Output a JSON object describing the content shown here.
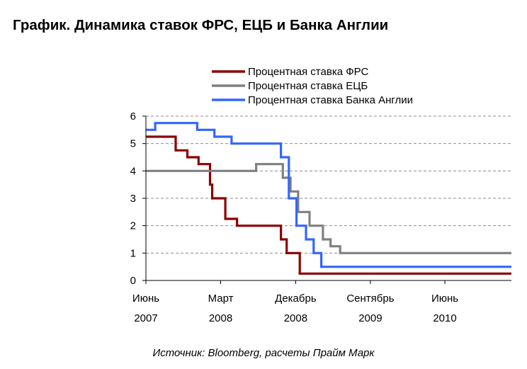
{
  "title": "График. Динамика ставок ФРС, ЕЦБ и Банка Англии",
  "source": "Источник: Bloomberg, расчеты Прайм Марк",
  "chart_data": {
    "type": "line",
    "step": true,
    "title": "График. Динамика ставок ФРС, ЕЦБ и Банка Англии",
    "xlabel": "",
    "ylabel": "",
    "xlim": [
      "2007-06-01",
      "2011-01-31"
    ],
    "ylim": [
      0,
      6
    ],
    "y_ticks": [
      0,
      1,
      2,
      3,
      4,
      5,
      6
    ],
    "grid": "horizontal-dashed",
    "legend_position": "top-center",
    "x_tick_labels": [
      {
        "date": "2007-06-01",
        "month": "Июнь",
        "year": "2007"
      },
      {
        "date": "2008-03-01",
        "month": "Март",
        "year": "2008"
      },
      {
        "date": "2008-12-01",
        "month": "Декабрь",
        "year": "2008"
      },
      {
        "date": "2009-09-01",
        "month": "Сентябрь",
        "year": "2009"
      },
      {
        "date": "2010-06-01",
        "month": "Июнь",
        "year": "2010"
      }
    ],
    "series": [
      {
        "name": "Процентная ставка ФРС",
        "color": "#8b0000",
        "points": [
          [
            "2007-06-01",
            5.25
          ],
          [
            "2007-09-18",
            4.75
          ],
          [
            "2007-10-31",
            4.5
          ],
          [
            "2007-12-11",
            4.25
          ],
          [
            "2008-01-22",
            3.5
          ],
          [
            "2008-01-30",
            3.0
          ],
          [
            "2008-03-18",
            2.25
          ],
          [
            "2008-04-30",
            2.0
          ],
          [
            "2008-10-08",
            1.5
          ],
          [
            "2008-10-29",
            1.0
          ],
          [
            "2008-12-16",
            0.25
          ],
          [
            "2011-01-31",
            0.25
          ]
        ]
      },
      {
        "name": "Процентная ставка ЕЦБ",
        "color": "#808080",
        "points": [
          [
            "2007-06-01",
            4.0
          ],
          [
            "2008-07-09",
            4.25
          ],
          [
            "2008-10-15",
            3.75
          ],
          [
            "2008-11-12",
            3.25
          ],
          [
            "2008-12-10",
            2.5
          ],
          [
            "2009-01-21",
            2.0
          ],
          [
            "2009-03-11",
            1.5
          ],
          [
            "2009-04-08",
            1.25
          ],
          [
            "2009-05-13",
            1.0
          ],
          [
            "2011-01-31",
            1.0
          ]
        ]
      },
      {
        "name": "Процентная ставка Банка Англии",
        "color": "#3366ff",
        "points": [
          [
            "2007-06-01",
            5.5
          ],
          [
            "2007-07-05",
            5.75
          ],
          [
            "2007-12-06",
            5.5
          ],
          [
            "2008-02-07",
            5.25
          ],
          [
            "2008-04-10",
            5.0
          ],
          [
            "2008-10-08",
            4.5
          ],
          [
            "2008-11-06",
            3.0
          ],
          [
            "2008-12-04",
            2.0
          ],
          [
            "2009-01-08",
            1.5
          ],
          [
            "2009-02-05",
            1.0
          ],
          [
            "2009-03-05",
            0.5
          ],
          [
            "2011-01-31",
            0.5
          ]
        ]
      }
    ]
  }
}
